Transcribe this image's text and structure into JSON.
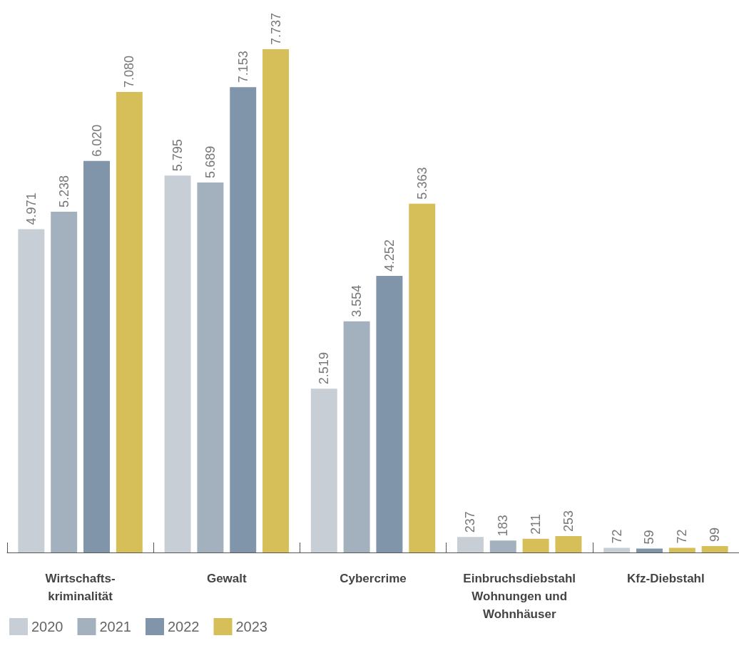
{
  "chart_data": {
    "type": "bar",
    "categories": [
      "Wirtschafts-\nkriminalität",
      "Gewalt",
      "Cybercrime",
      "Einbruchsdiebstahl\nWohnungen und\nWohnhäuser",
      "Kfz-Diebstahl"
    ],
    "series": [
      {
        "name": "2020",
        "color": "#c8ced6",
        "values": [
          4971,
          5795,
          2519,
          237,
          72
        ],
        "value_labels": [
          "4.971",
          "5.795",
          "2.519",
          "237",
          "72"
        ]
      },
      {
        "name": "2021",
        "color": "#a3b0bd",
        "colors": [
          "#a3b0bd",
          "#a3b0bd",
          "#a3b0bd",
          "#a3b0bd",
          "#8095aa"
        ],
        "values": [
          5238,
          5689,
          3554,
          183,
          59
        ],
        "value_labels": [
          "5.238",
          "5.689",
          "3.554",
          "183",
          "59"
        ]
      },
      {
        "name": "2022",
        "color": "#8095aa",
        "colors": [
          "#8095aa",
          "#8095aa",
          "#8095aa",
          "#d6bf58",
          "#d6bf58"
        ],
        "values": [
          6020,
          7153,
          4252,
          211,
          72
        ],
        "value_labels": [
          "6.020",
          "7.153",
          "4.252",
          "211",
          "72"
        ]
      },
      {
        "name": "2023",
        "color": "#d6bf58",
        "values": [
          7080,
          7737,
          5363,
          253,
          99
        ],
        "value_labels": [
          "7.080",
          "7.737",
          "5.363",
          "253",
          "99"
        ]
      }
    ],
    "legend": "bottom left",
    "grid": false,
    "tick_labels": "x"
  }
}
